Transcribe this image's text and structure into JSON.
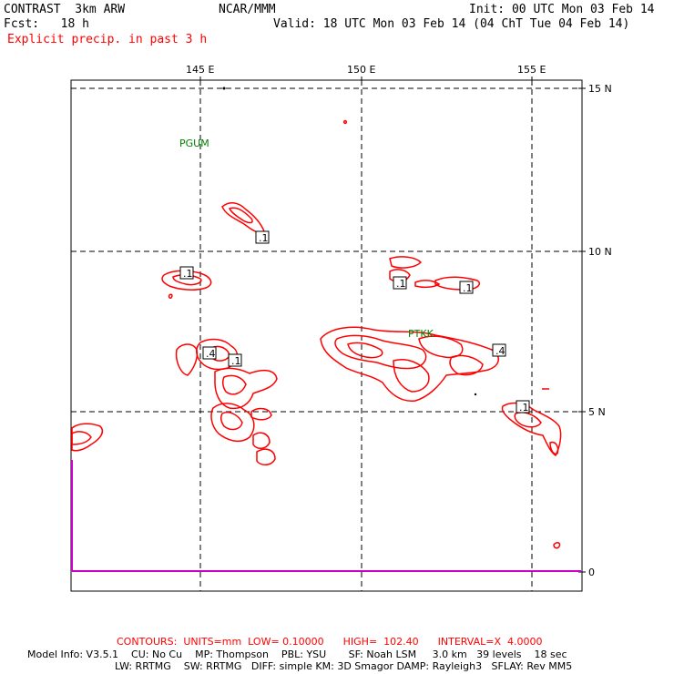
{
  "header": {
    "model_title": "CONTRAST  3km ARW",
    "center": "NCAR/MMM",
    "init": "Init: 00 UTC Mon 03 Feb 14",
    "fcst": "Fcst:   18 h",
    "valid": "Valid: 18 UTC Mon 03 Feb 14 (04 ChT Tue 04 Feb 14)",
    "field": "Explicit precip. in past 3 h"
  },
  "map": {
    "lon_labels": [
      "145 E",
      "150 E",
      "155 E"
    ],
    "lat_labels": [
      "15 N",
      "10 N",
      "5 N",
      "0"
    ],
    "stations": [
      "PGUM",
      "PTKK"
    ],
    "contour_labels": [
      ".1",
      ".1",
      ".1",
      ".1",
      ".4",
      ".1",
      ".4",
      ".1"
    ],
    "colors": {
      "contour": "#ff0000",
      "frame": "#000000",
      "axis_line": "#cc00cc",
      "station": "#008000"
    }
  },
  "footer": {
    "contours": "CONTOURS:  UNITS=mm  LOW= 0.10000      HIGH=  102.40      INTERVAL=X  4.0000",
    "model_info_1": "Model Info: V3.5.1    CU: No Cu    MP: Thompson    PBL: YSU       SF: Noah LSM     3.0 km   39 levels    18 sec",
    "model_info_2": "LW: RRTMG    SW: RRTMG   DIFF: simple KM: 3D Smagor DAMP: Rayleigh3   SFLAY: Rev MM5"
  }
}
